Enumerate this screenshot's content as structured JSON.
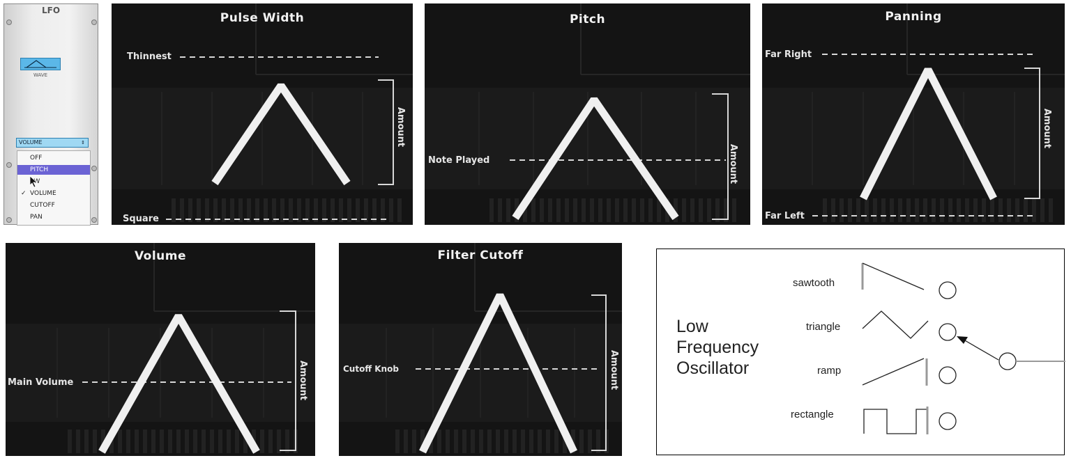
{
  "lfo_module": {
    "title": "LFO",
    "wave_label": "WAVE",
    "destination_value": "VOLUME",
    "menu_items": [
      "OFF",
      "PITCH",
      "PW",
      "VOLUME",
      "CUTOFF",
      "PAN"
    ],
    "highlighted_item": "PITCH",
    "checked_item": "VOLUME",
    "accent_color": "#5bb7e8",
    "highlight_color": "#6b63d4"
  },
  "panels": {
    "pulse_width": {
      "title": "Pulse Width",
      "top_label": "Thinnest",
      "bottom_label": "Square",
      "amount_label": "Amount"
    },
    "pitch": {
      "title": "Pitch",
      "mid_label": "Note Played",
      "amount_label": "Amount"
    },
    "panning": {
      "title": "Panning",
      "top_label": "Far Right",
      "bottom_label": "Far Left",
      "amount_label": "Amount"
    },
    "volume": {
      "title": "Volume",
      "mid_label": "Main Volume",
      "amount_label": "Amount"
    },
    "filter_cutoff": {
      "title": "Filter Cutoff",
      "mid_label": "Cutoff Knob",
      "amount_label": "Amount"
    }
  },
  "diagram": {
    "heading_lines": [
      "Low",
      "Frequency",
      "Oscillator"
    ],
    "waveforms": [
      "sawtooth",
      "triangle",
      "ramp",
      "rectangle"
    ],
    "selected_waveform": "triangle"
  }
}
